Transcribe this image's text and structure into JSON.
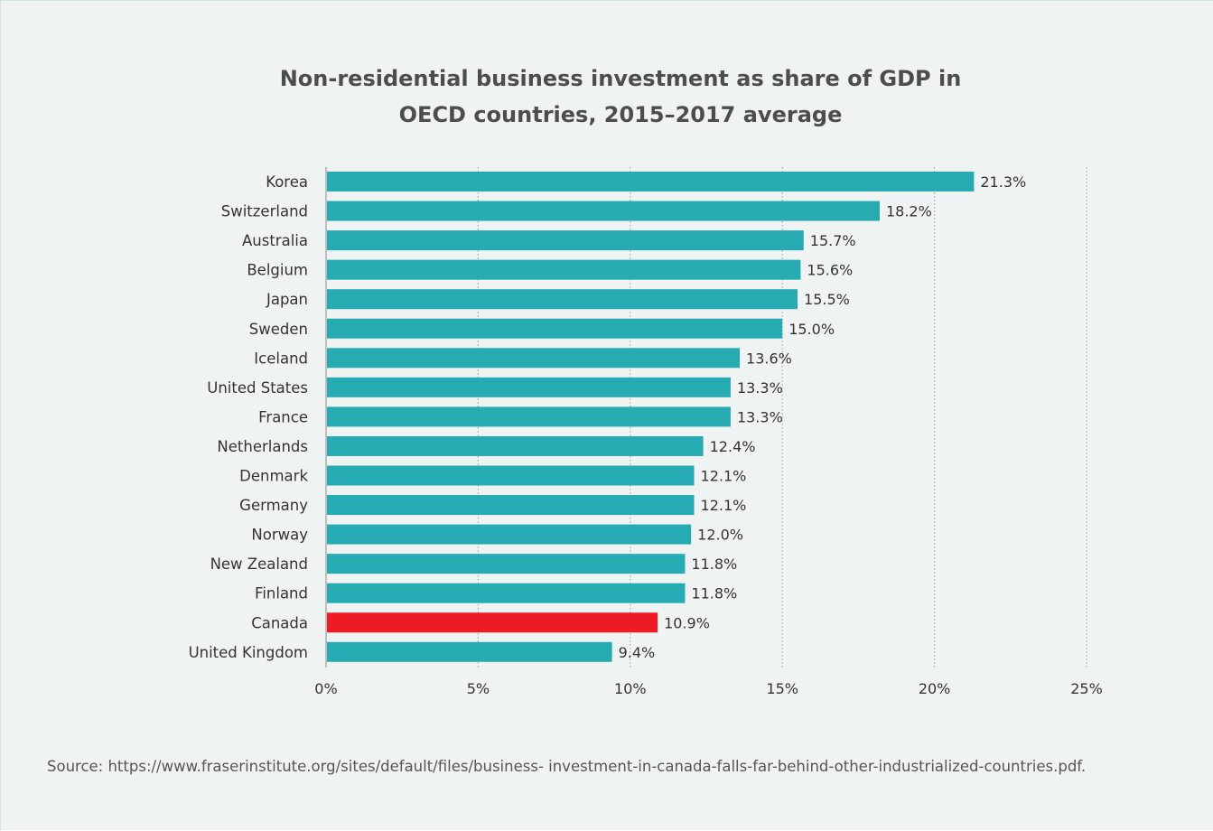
{
  "chart_data": {
    "type": "bar",
    "orientation": "horizontal",
    "title_lines": [
      "Non-residential business investment as share of GDP in",
      "OECD countries, 2015–2017 average"
    ],
    "categories": [
      "Korea",
      "Switzerland",
      "Australia",
      "Belgium",
      "Japan",
      "Sweden",
      "Iceland",
      "United States",
      "France",
      "Netherlands",
      "Denmark",
      "Germany",
      "Norway",
      "New Zealand",
      "Finland",
      "Canada",
      "United Kingdom"
    ],
    "values": [
      21.3,
      18.2,
      15.7,
      15.6,
      15.5,
      15.0,
      13.6,
      13.3,
      13.3,
      12.4,
      12.1,
      12.1,
      12.0,
      11.8,
      11.8,
      10.9,
      9.4
    ],
    "value_labels": [
      "21.3%",
      "18.2%",
      "15.7%",
      "15.6%",
      "15.5%",
      "15.0%",
      "13.6%",
      "13.3%",
      "13.3%",
      "12.4%",
      "12.1%",
      "12.1%",
      "12.0%",
      "11.8%",
      "11.8%",
      "10.9%",
      "9.4%"
    ],
    "xlim": [
      0,
      25
    ],
    "x_ticks": [
      0,
      5,
      10,
      15,
      20,
      25
    ],
    "x_tick_labels": [
      "0%",
      "5%",
      "10%",
      "15%",
      "20%",
      "25%"
    ],
    "grid": "vertical dotted",
    "bar_color": "#26abb3",
    "highlight_category": "Canada",
    "highlight_color": "#ed1c24"
  },
  "source": "Source: https://www.fraserinstitute.org/sites/default/files/business- investment-in-canada-falls-far-behind-other-industrialized-countries.pdf."
}
